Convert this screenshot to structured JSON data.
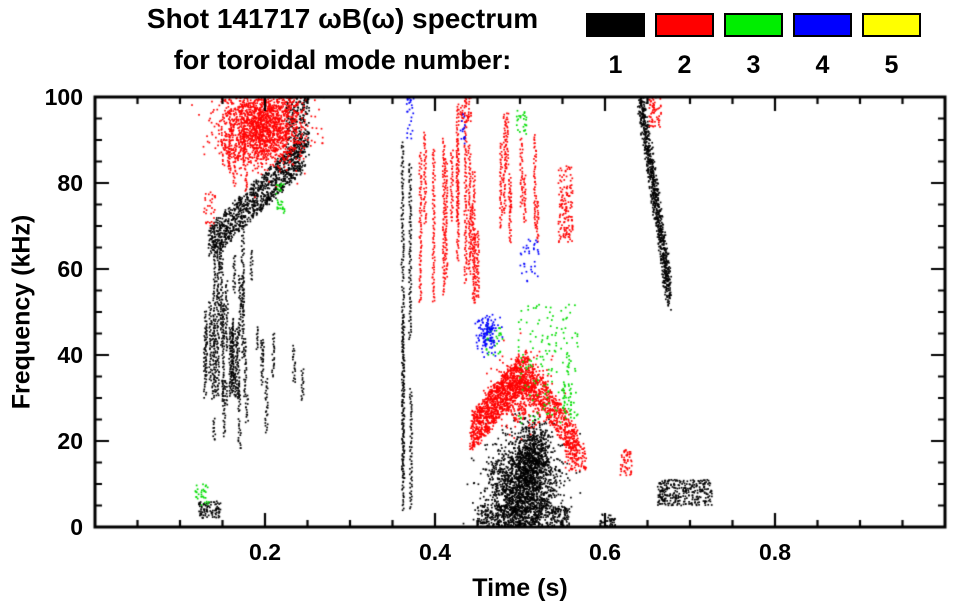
{
  "header": {
    "title_line1": "Shot 141717 ωB(ω) spectrum",
    "title_line2": "for toroidal mode number:"
  },
  "legend": {
    "position": "top-right",
    "entries": [
      {
        "label": "1",
        "color": "#000000"
      },
      {
        "label": "2",
        "color": "#ff0000"
      },
      {
        "label": "3",
        "color": "#00ee00"
      },
      {
        "label": "4",
        "color": "#0000ff"
      },
      {
        "label": "5",
        "color": "#ffff00"
      }
    ]
  },
  "chart_data": {
    "type": "scatter",
    "title": "Shot 141717 ωB(ω) spectrum",
    "subtitle": "for toroidal mode number:",
    "xlabel": "Time (s)",
    "ylabel": "Frequency (kHz)",
    "xlim": [
      0.0,
      1.0
    ],
    "ylim": [
      0,
      100
    ],
    "xticks": [
      0.2,
      0.4,
      0.6,
      0.8
    ],
    "xtick_labels": [
      "0.2",
      "0.4",
      "0.6",
      "0.8"
    ],
    "yticks": [
      0,
      20,
      40,
      60,
      80,
      100
    ],
    "ytick_labels": [
      "0",
      "20",
      "40",
      "60",
      "80",
      "100"
    ],
    "x_minor_step": 0.05,
    "y_minor_step": 5,
    "grid": false,
    "background": "#ffffff",
    "series": [
      {
        "name": "1",
        "color": "#000000",
        "clusters": [
          {
            "kind": "streaks",
            "t": [
              0.128,
              0.185
            ],
            "f": [
              30,
              70
            ],
            "n": 26,
            "len": [
              6,
              26
            ]
          },
          {
            "kind": "streaks",
            "t": [
              0.135,
              0.185
            ],
            "f": [
              18,
              38
            ],
            "n": 8,
            "len": [
              4,
              10
            ]
          },
          {
            "kind": "ramp",
            "from": [
              0.135,
              66
            ],
            "to": [
              0.245,
              87
            ],
            "thickness": 8,
            "count": 1000
          },
          {
            "kind": "scatter",
            "t": [
              0.225,
              0.252
            ],
            "f": [
              86,
              100
            ],
            "count": 220
          },
          {
            "kind": "streaks",
            "t": [
              0.19,
              0.245
            ],
            "f": [
              22,
              48
            ],
            "n": 7,
            "len": [
              4,
              14
            ]
          },
          {
            "kind": "streaks",
            "t": [
              0.356,
              0.378
            ],
            "f": [
              4,
              92
            ],
            "n": 5,
            "len": [
              30,
              80
            ]
          },
          {
            "kind": "blob",
            "center": [
              0.503,
              9
            ],
            "sigma": [
              0.021,
              5.5
            ],
            "count": 1700
          },
          {
            "kind": "blob",
            "center": [
              0.516,
              17
            ],
            "sigma": [
              0.011,
              4
            ],
            "count": 500
          },
          {
            "kind": "scatter",
            "t": [
              0.45,
              0.558
            ],
            "f": [
              0,
              5
            ],
            "count": 420
          },
          {
            "kind": "ramp",
            "from": [
              0.641,
              101
            ],
            "to": [
              0.676,
              54
            ],
            "thickness": 9,
            "count": 800
          },
          {
            "kind": "scatter",
            "t": [
              0.662,
              0.726
            ],
            "f": [
              5,
              11
            ],
            "count": 300
          },
          {
            "kind": "scatter",
            "t": [
              0.122,
              0.148
            ],
            "f": [
              2,
              6
            ],
            "count": 90
          },
          {
            "kind": "scatter",
            "t": [
              0.594,
              0.612
            ],
            "f": [
              0,
              3
            ],
            "count": 40
          }
        ]
      },
      {
        "name": "2",
        "color": "#ff0000",
        "clusters": [
          {
            "kind": "blob",
            "center": [
              0.197,
              93
            ],
            "sigma": [
              0.024,
              4.5
            ],
            "count": 1400
          },
          {
            "kind": "scatter",
            "t": [
              0.148,
              0.245
            ],
            "f": [
              85,
              100
            ],
            "count": 350
          },
          {
            "kind": "streaks",
            "t": [
              0.148,
              0.185
            ],
            "f": [
              78,
              94
            ],
            "n": 6,
            "len": [
              4,
              10
            ]
          },
          {
            "kind": "scatter",
            "t": [
              0.128,
              0.142
            ],
            "f": [
              70,
              78
            ],
            "count": 30
          },
          {
            "kind": "streaks",
            "t": [
              0.378,
              0.452
            ],
            "f": [
              52,
              100
            ],
            "n": 14,
            "len": [
              10,
              45
            ]
          },
          {
            "kind": "streaks",
            "t": [
              0.475,
              0.53
            ],
            "f": [
              66,
              97
            ],
            "n": 9,
            "len": [
              8,
              26
            ]
          },
          {
            "kind": "scatter",
            "t": [
              0.545,
              0.562
            ],
            "f": [
              66,
              84
            ],
            "count": 140
          },
          {
            "kind": "ramp",
            "from": [
              0.443,
              22
            ],
            "to": [
              0.507,
              37
            ],
            "thickness": 9,
            "count": 1000
          },
          {
            "kind": "ramp",
            "from": [
              0.507,
              36
            ],
            "to": [
              0.568,
              19
            ],
            "thickness": 8,
            "count": 550
          },
          {
            "kind": "blob",
            "center": [
              0.502,
              31
            ],
            "sigma": [
              0.016,
              4
            ],
            "count": 450
          },
          {
            "kind": "scatter",
            "t": [
              0.553,
              0.578
            ],
            "f": [
              13,
              20
            ],
            "count": 90
          },
          {
            "kind": "scatter",
            "t": [
              0.618,
              0.632
            ],
            "f": [
              12,
              18
            ],
            "count": 50
          },
          {
            "kind": "scatter",
            "t": [
              0.652,
              0.666
            ],
            "f": [
              93,
              100
            ],
            "count": 60
          },
          {
            "kind": "scatter",
            "t": [
              0.428,
              0.443
            ],
            "f": [
              94,
              100
            ],
            "count": 50
          }
        ]
      },
      {
        "name": "3",
        "color": "#00dd00",
        "clusters": [
          {
            "kind": "scatter",
            "t": [
              0.498,
              0.568
            ],
            "f": [
              24,
              52
            ],
            "count": 150
          },
          {
            "kind": "streaks",
            "t": [
              0.552,
              0.566
            ],
            "f": [
              26,
              42
            ],
            "n": 3,
            "len": [
              5,
              10
            ]
          },
          {
            "kind": "scatter",
            "t": [
              0.212,
              0.224
            ],
            "f": [
              73,
              80
            ],
            "count": 30
          },
          {
            "kind": "scatter",
            "t": [
              0.496,
              0.508
            ],
            "f": [
              91,
              97
            ],
            "count": 25
          },
          {
            "kind": "scatter",
            "t": [
              0.118,
              0.134
            ],
            "f": [
              5,
              10
            ],
            "count": 30
          },
          {
            "kind": "scatter",
            "t": [
              0.46,
              0.48
            ],
            "f": [
              40,
              47
            ],
            "count": 35
          }
        ]
      },
      {
        "name": "4",
        "color": "#0000ff",
        "clusters": [
          {
            "kind": "blob",
            "center": [
              0.462,
              45
            ],
            "sigma": [
              0.007,
              2.2
            ],
            "count": 130
          },
          {
            "kind": "scatter",
            "t": [
              0.5,
              0.522
            ],
            "f": [
              57,
              67
            ],
            "count": 35
          },
          {
            "kind": "scatter",
            "t": [
              0.366,
              0.376
            ],
            "f": [
              90,
              100
            ],
            "count": 25
          },
          {
            "kind": "scatter",
            "t": [
              0.428,
              0.436
            ],
            "f": [
              88,
              96
            ],
            "count": 15
          }
        ]
      },
      {
        "name": "5",
        "color": "#ffff00",
        "clusters": []
      }
    ]
  }
}
